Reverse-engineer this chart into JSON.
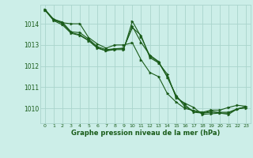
{
  "title": "Graphe pression niveau de la mer (hPa)",
  "bg_color": "#cceee8",
  "grid_color": "#aad4cc",
  "line_color": "#1a5c1a",
  "marker_color": "#1a5c1a",
  "xlim": [
    -0.5,
    23.5
  ],
  "ylim": [
    1009.3,
    1014.9
  ],
  "yticks": [
    1010,
    1011,
    1012,
    1013,
    1014
  ],
  "xticks": [
    0,
    1,
    2,
    3,
    4,
    5,
    6,
    7,
    8,
    9,
    10,
    11,
    12,
    13,
    14,
    15,
    16,
    17,
    18,
    19,
    20,
    21,
    22,
    23
  ],
  "series": [
    [
      1014.65,
      1014.2,
      1014.05,
      1014.0,
      1014.0,
      1013.35,
      1013.05,
      1012.85,
      1013.0,
      1013.0,
      1013.1,
      1012.3,
      1011.7,
      1011.5,
      1010.7,
      1010.3,
      1010.0,
      1009.9,
      1009.82,
      1009.92,
      1009.92,
      1010.05,
      1010.15,
      1010.1
    ],
    [
      1014.65,
      1014.15,
      1013.95,
      1013.55,
      1013.45,
      1013.2,
      1012.85,
      1012.72,
      1012.82,
      1012.85,
      1013.82,
      1013.45,
      1012.4,
      1012.15,
      1011.62,
      1010.5,
      1010.25,
      1010.05,
      1009.72,
      1009.75,
      1009.78,
      1009.72,
      1009.98,
      1010.08
    ],
    [
      1014.68,
      1014.18,
      1014.02,
      1013.58,
      1013.48,
      1013.22,
      1012.88,
      1012.72,
      1012.78,
      1012.78,
      1014.12,
      1013.38,
      1012.48,
      1012.18,
      1011.48,
      1010.58,
      1010.18,
      1009.82,
      1009.78,
      1009.82,
      1009.82,
      1009.82,
      1009.98,
      1010.08
    ],
    [
      1014.68,
      1014.22,
      1014.08,
      1013.62,
      1013.58,
      1013.28,
      1012.92,
      1012.78,
      1012.82,
      1012.82,
      1013.88,
      1013.12,
      1012.52,
      1012.22,
      1011.48,
      1010.62,
      1010.08,
      1009.88,
      1009.78,
      1009.88,
      1009.78,
      1009.78,
      1009.98,
      1010.02
    ]
  ]
}
